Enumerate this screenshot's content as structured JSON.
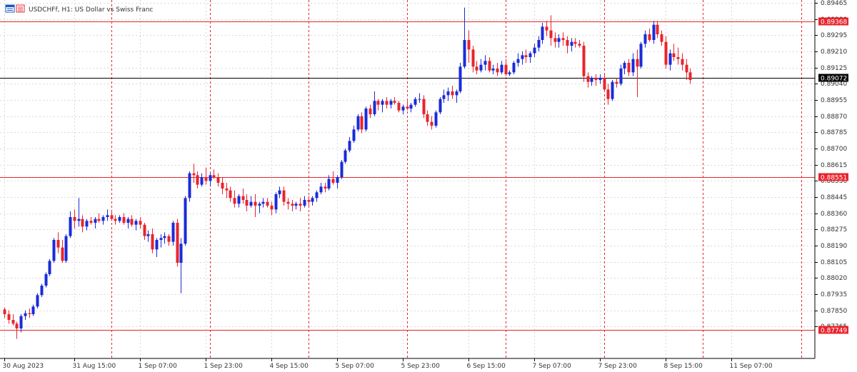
{
  "header": {
    "symbol_label": "USDCHFf, H1:  US Dollar vs Swiss Franc",
    "icon": "chart-window-icon"
  },
  "colors": {
    "bull": "#1a2bd8",
    "bear": "#e8242c",
    "level_line": "#e8242c",
    "current_price_line": "#000000",
    "grid": "#d9d9d9",
    "separator": "#e8242c",
    "badge_red_bg": "#e8242c",
    "badge_black_bg": "#000000",
    "badge_text": "#ffffff"
  },
  "chart_data": {
    "type": "candlestick",
    "title": "USDCHFf, H1:  US Dollar vs Swiss Franc",
    "ylim": [
      0.87665,
      0.89465
    ],
    "y_ticks": [
      "0.89465",
      "0.89380",
      "0.89295",
      "0.89210",
      "0.89125",
      "0.89040",
      "0.88955",
      "0.88870",
      "0.88785",
      "0.88700",
      "0.88615",
      "0.88530",
      "0.88445",
      "0.88360",
      "0.88275",
      "0.88190",
      "0.88105",
      "0.88020",
      "0.87935",
      "0.87850",
      "0.87765"
    ],
    "x_ticks": [
      {
        "label": "30 Aug 2023",
        "bar": 0
      },
      {
        "label": "31 Aug 15:00",
        "bar": 17
      },
      {
        "label": "1 Sep 07:00",
        "bar": 33
      },
      {
        "label": "1 Sep 23:00",
        "bar": 49
      },
      {
        "label": "4 Sep 15:00",
        "bar": 65
      },
      {
        "label": "5 Sep 07:00",
        "bar": 81
      },
      {
        "label": "5 Sep 23:00",
        "bar": 97
      },
      {
        "label": "6 Sep 15:00",
        "bar": 113
      },
      {
        "label": "7 Sep 07:00",
        "bar": 129
      },
      {
        "label": "7 Sep 23:00",
        "bar": 145
      },
      {
        "label": "8 Sep 15:00",
        "bar": 161
      },
      {
        "label": "11 Sep 07:00",
        "bar": 177
      }
    ],
    "day_separators_bar": [
      26,
      50,
      74,
      98,
      122,
      146,
      170,
      194
    ],
    "levels": [
      {
        "price": "0.89368",
        "price_value": 0.89368,
        "color": "red"
      },
      {
        "price": "0.89072",
        "price_value": 0.89072,
        "color": "black"
      },
      {
        "price": "0.88551",
        "price_value": 0.88551,
        "color": "red"
      },
      {
        "price": "0.87749",
        "price_value": 0.87749,
        "color": "red"
      }
    ],
    "series": [
      {
        "name": "USDCHFf",
        "ohlc": [
          [
            0.87855,
            0.87865,
            0.8781,
            0.8783
          ],
          [
            0.8783,
            0.8785,
            0.8778,
            0.878
          ],
          [
            0.878,
            0.8783,
            0.8777,
            0.8778
          ],
          [
            0.8778,
            0.8779,
            0.877,
            0.87755
          ],
          [
            0.87755,
            0.8783,
            0.87735,
            0.8782
          ],
          [
            0.8782,
            0.8785,
            0.878,
            0.87835
          ],
          [
            0.87835,
            0.8786,
            0.8781,
            0.8783
          ],
          [
            0.8783,
            0.8788,
            0.8782,
            0.8787
          ],
          [
            0.8787,
            0.8794,
            0.8786,
            0.8793
          ],
          [
            0.8793,
            0.8799,
            0.8792,
            0.8798
          ],
          [
            0.8798,
            0.8805,
            0.8797,
            0.8804
          ],
          [
            0.8804,
            0.8812,
            0.8803,
            0.8811
          ],
          [
            0.8811,
            0.8823,
            0.881,
            0.8822
          ],
          [
            0.8822,
            0.8826,
            0.8815,
            0.8818
          ],
          [
            0.8818,
            0.8822,
            0.881,
            0.8811
          ],
          [
            0.8811,
            0.8825,
            0.881,
            0.8824
          ],
          [
            0.8824,
            0.8837,
            0.8823,
            0.8834
          ],
          [
            0.8834,
            0.8838,
            0.8828,
            0.8832
          ],
          [
            0.8832,
            0.8844,
            0.8829,
            0.8833
          ],
          [
            0.8833,
            0.8835,
            0.8826,
            0.8829
          ],
          [
            0.8829,
            0.8833,
            0.8827,
            0.8832
          ],
          [
            0.8832,
            0.8834,
            0.883,
            0.8831
          ],
          [
            0.8831,
            0.8834,
            0.8828,
            0.8833
          ],
          [
            0.8833,
            0.8836,
            0.8831,
            0.8832
          ],
          [
            0.8832,
            0.8835,
            0.883,
            0.8834
          ],
          [
            0.8834,
            0.8838,
            0.8832,
            0.8835
          ],
          [
            0.8835,
            0.8837,
            0.8832,
            0.8833
          ],
          [
            0.8833,
            0.8835,
            0.883,
            0.8832
          ],
          [
            0.8832,
            0.8835,
            0.8831,
            0.8834
          ],
          [
            0.8834,
            0.8836,
            0.883,
            0.8831
          ],
          [
            0.8831,
            0.8834,
            0.8828,
            0.8833
          ],
          [
            0.8833,
            0.8835,
            0.8829,
            0.883
          ],
          [
            0.883,
            0.8833,
            0.8827,
            0.8832
          ],
          [
            0.8832,
            0.8834,
            0.8828,
            0.883
          ],
          [
            0.883,
            0.8831,
            0.8822,
            0.8824
          ],
          [
            0.8824,
            0.8827,
            0.8821,
            0.8825
          ],
          [
            0.8825,
            0.8828,
            0.8815,
            0.8817
          ],
          [
            0.8817,
            0.8823,
            0.8813,
            0.8822
          ],
          [
            0.8822,
            0.8825,
            0.8818,
            0.8823
          ],
          [
            0.8823,
            0.8826,
            0.882,
            0.8824
          ],
          [
            0.8824,
            0.8825,
            0.8819,
            0.8821
          ],
          [
            0.8821,
            0.8832,
            0.8819,
            0.8831
          ],
          [
            0.8831,
            0.8833,
            0.8808,
            0.881
          ],
          [
            0.881,
            0.8823,
            0.8794,
            0.882
          ],
          [
            0.882,
            0.8845,
            0.8819,
            0.8844
          ],
          [
            0.8844,
            0.8858,
            0.8842,
            0.8857
          ],
          [
            0.8857,
            0.8862,
            0.8852,
            0.8856
          ],
          [
            0.8856,
            0.8858,
            0.8849,
            0.8851
          ],
          [
            0.8851,
            0.8857,
            0.885,
            0.8855
          ],
          [
            0.8855,
            0.886,
            0.8851,
            0.8853
          ],
          [
            0.8853,
            0.8857,
            0.885,
            0.8856
          ],
          [
            0.8856,
            0.8859,
            0.8854,
            0.8855
          ],
          [
            0.8855,
            0.8857,
            0.885,
            0.8852
          ],
          [
            0.8852,
            0.8855,
            0.8846,
            0.8849
          ],
          [
            0.8849,
            0.8852,
            0.8844,
            0.8848
          ],
          [
            0.8848,
            0.885,
            0.8842,
            0.8844
          ],
          [
            0.8844,
            0.8848,
            0.8839,
            0.8841
          ],
          [
            0.8841,
            0.8846,
            0.8839,
            0.8845
          ],
          [
            0.8845,
            0.8849,
            0.8841,
            0.8843
          ],
          [
            0.8843,
            0.8846,
            0.8837,
            0.884
          ],
          [
            0.884,
            0.8845,
            0.8839,
            0.8842
          ],
          [
            0.8842,
            0.8846,
            0.8834,
            0.884
          ],
          [
            0.884,
            0.8842,
            0.8836,
            0.8841
          ],
          [
            0.8841,
            0.8844,
            0.8839,
            0.8842
          ],
          [
            0.8842,
            0.8844,
            0.8839,
            0.884
          ],
          [
            0.884,
            0.8842,
            0.8835,
            0.8838
          ],
          [
            0.8838,
            0.8847,
            0.8836,
            0.8846
          ],
          [
            0.8846,
            0.885,
            0.8844,
            0.8848
          ],
          [
            0.8848,
            0.885,
            0.884,
            0.8842
          ],
          [
            0.8842,
            0.8844,
            0.8838,
            0.8841
          ],
          [
            0.8841,
            0.8843,
            0.8837,
            0.884
          ],
          [
            0.884,
            0.8842,
            0.8838,
            0.8841
          ],
          [
            0.8841,
            0.8844,
            0.8837,
            0.884
          ],
          [
            0.884,
            0.8845,
            0.8839,
            0.8843
          ],
          [
            0.8843,
            0.8845,
            0.884,
            0.8842
          ],
          [
            0.8842,
            0.8845,
            0.884,
            0.8844
          ],
          [
            0.8844,
            0.8848,
            0.8842,
            0.8847
          ],
          [
            0.8847,
            0.8852,
            0.8846,
            0.885
          ],
          [
            0.885,
            0.8852,
            0.8847,
            0.8849
          ],
          [
            0.8849,
            0.8856,
            0.8848,
            0.8854
          ],
          [
            0.8854,
            0.8858,
            0.8851,
            0.8852
          ],
          [
            0.8852,
            0.8856,
            0.8849,
            0.8855
          ],
          [
            0.8855,
            0.8864,
            0.8854,
            0.8863
          ],
          [
            0.8863,
            0.887,
            0.8862,
            0.8869
          ],
          [
            0.8869,
            0.8876,
            0.8868,
            0.8874
          ],
          [
            0.8874,
            0.8882,
            0.8873,
            0.888
          ],
          [
            0.888,
            0.8888,
            0.8879,
            0.8887
          ],
          [
            0.8887,
            0.8889,
            0.8878,
            0.888
          ],
          [
            0.888,
            0.8892,
            0.8879,
            0.8891
          ],
          [
            0.8891,
            0.8893,
            0.8886,
            0.8888
          ],
          [
            0.8888,
            0.89,
            0.8887,
            0.8895
          ],
          [
            0.8895,
            0.8896,
            0.889,
            0.8893
          ],
          [
            0.8893,
            0.8896,
            0.8889,
            0.8895
          ],
          [
            0.8895,
            0.8897,
            0.8891,
            0.8893
          ],
          [
            0.8893,
            0.8896,
            0.8891,
            0.8895
          ],
          [
            0.8895,
            0.8897,
            0.8893,
            0.8894
          ],
          [
            0.8894,
            0.8895,
            0.8889,
            0.889
          ],
          [
            0.889,
            0.8893,
            0.8888,
            0.8892
          ],
          [
            0.8892,
            0.8895,
            0.889,
            0.8891
          ],
          [
            0.8891,
            0.8894,
            0.8889,
            0.8893
          ],
          [
            0.8893,
            0.8897,
            0.8892,
            0.8896
          ],
          [
            0.8896,
            0.8899,
            0.8894,
            0.8896
          ],
          [
            0.8896,
            0.8898,
            0.8886,
            0.8888
          ],
          [
            0.8888,
            0.889,
            0.8882,
            0.8884
          ],
          [
            0.8884,
            0.8887,
            0.888,
            0.8882
          ],
          [
            0.8882,
            0.889,
            0.8881,
            0.8889
          ],
          [
            0.8889,
            0.8897,
            0.8888,
            0.8896
          ],
          [
            0.8896,
            0.8901,
            0.8894,
            0.8898
          ],
          [
            0.8898,
            0.8902,
            0.8895,
            0.89
          ],
          [
            0.89,
            0.8903,
            0.8896,
            0.8898
          ],
          [
            0.8898,
            0.8901,
            0.8894,
            0.89
          ],
          [
            0.89,
            0.8915,
            0.8899,
            0.8913
          ],
          [
            0.8913,
            0.8944,
            0.8912,
            0.8927
          ],
          [
            0.8927,
            0.8932,
            0.8915,
            0.8922
          ],
          [
            0.8922,
            0.8924,
            0.891,
            0.8913
          ],
          [
            0.8913,
            0.8916,
            0.8909,
            0.8911
          ],
          [
            0.8911,
            0.8917,
            0.891,
            0.8914
          ],
          [
            0.8914,
            0.8919,
            0.8911,
            0.8916
          ],
          [
            0.8916,
            0.8918,
            0.891,
            0.8911
          ],
          [
            0.8911,
            0.8914,
            0.8909,
            0.8912
          ],
          [
            0.8912,
            0.8915,
            0.8908,
            0.891
          ],
          [
            0.891,
            0.8916,
            0.8909,
            0.8914
          ],
          [
            0.8914,
            0.8917,
            0.8908,
            0.8909
          ],
          [
            0.8909,
            0.8911,
            0.8908,
            0.891
          ],
          [
            0.891,
            0.8916,
            0.8909,
            0.8915
          ],
          [
            0.8915,
            0.892,
            0.8913,
            0.8917
          ],
          [
            0.8917,
            0.8921,
            0.8914,
            0.8919
          ],
          [
            0.8919,
            0.8922,
            0.8915,
            0.8918
          ],
          [
            0.8918,
            0.8921,
            0.8915,
            0.892
          ],
          [
            0.892,
            0.8925,
            0.8918,
            0.8923
          ],
          [
            0.8923,
            0.8929,
            0.8921,
            0.8927
          ],
          [
            0.8927,
            0.8936,
            0.8925,
            0.8934
          ],
          [
            0.8934,
            0.8937,
            0.8929,
            0.8932
          ],
          [
            0.8932,
            0.894,
            0.8924,
            0.8928
          ],
          [
            0.8928,
            0.8931,
            0.8923,
            0.8926
          ],
          [
            0.8926,
            0.893,
            0.8923,
            0.8928
          ],
          [
            0.8928,
            0.8931,
            0.8924,
            0.8927
          ],
          [
            0.8927,
            0.8929,
            0.892,
            0.8924
          ],
          [
            0.8924,
            0.8928,
            0.8921,
            0.8926
          ],
          [
            0.8926,
            0.8928,
            0.8923,
            0.8925
          ],
          [
            0.8925,
            0.8927,
            0.8923,
            0.8924
          ],
          [
            0.8924,
            0.8926,
            0.8905,
            0.8908
          ],
          [
            0.8908,
            0.891,
            0.8902,
            0.8905
          ],
          [
            0.8905,
            0.8908,
            0.8903,
            0.8907
          ],
          [
            0.8907,
            0.8909,
            0.8903,
            0.8906
          ],
          [
            0.8906,
            0.8909,
            0.8904,
            0.8907
          ],
          [
            0.8907,
            0.8909,
            0.89,
            0.8901
          ],
          [
            0.8901,
            0.8904,
            0.8893,
            0.8896
          ],
          [
            0.8896,
            0.8906,
            0.8895,
            0.8905
          ],
          [
            0.8905,
            0.8907,
            0.8902,
            0.8904
          ],
          [
            0.8904,
            0.8914,
            0.8903,
            0.8912
          ],
          [
            0.8912,
            0.8916,
            0.8909,
            0.8915
          ],
          [
            0.8915,
            0.8917,
            0.8908,
            0.891
          ],
          [
            0.891,
            0.892,
            0.8908,
            0.8917
          ],
          [
            0.8917,
            0.8922,
            0.8897,
            0.8913
          ],
          [
            0.8913,
            0.8926,
            0.8912,
            0.8925
          ],
          [
            0.8925,
            0.8932,
            0.8923,
            0.893
          ],
          [
            0.893,
            0.8933,
            0.8926,
            0.8927
          ],
          [
            0.8927,
            0.8937,
            0.8925,
            0.8935
          ],
          [
            0.8935,
            0.8937,
            0.8928,
            0.893
          ],
          [
            0.893,
            0.8932,
            0.8924,
            0.8926
          ],
          [
            0.8926,
            0.8929,
            0.8912,
            0.8914
          ],
          [
            0.8914,
            0.8922,
            0.8911,
            0.892
          ],
          [
            0.892,
            0.8925,
            0.8916,
            0.8918
          ],
          [
            0.8918,
            0.8923,
            0.8914,
            0.8917
          ],
          [
            0.8917,
            0.892,
            0.8911,
            0.8914
          ],
          [
            0.8914,
            0.8917,
            0.8906,
            0.891
          ],
          [
            0.891,
            0.8912,
            0.8904,
            0.8906
          ]
        ]
      }
    ]
  }
}
